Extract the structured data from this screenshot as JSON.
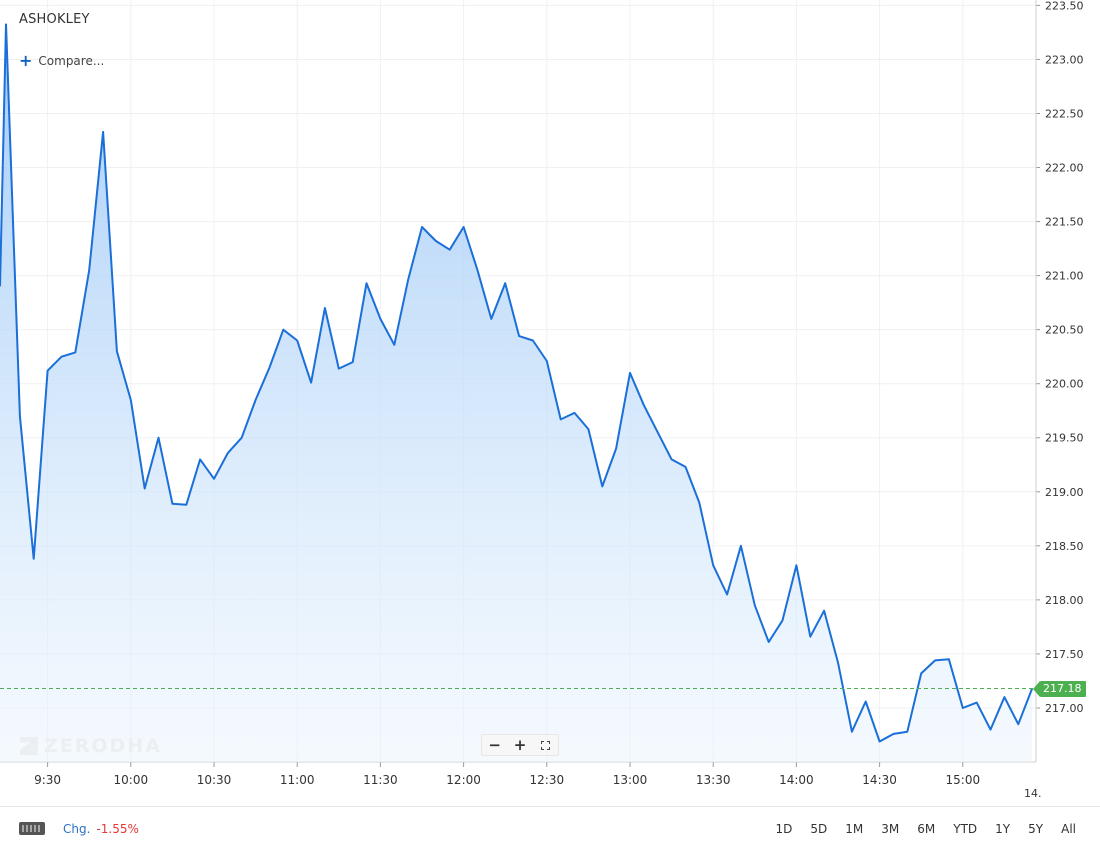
{
  "header": {
    "symbol": "ASHOKLEY",
    "compare_label": "Compare..."
  },
  "watermark": "ZERODHA",
  "zoom": {
    "minus": "−",
    "plus": "+",
    "fullscreen_icon": "fullscreen-icon"
  },
  "last_price": "217.18",
  "footer": {
    "keyboard_icon": "keyboard-icon",
    "chg_label": "Chg.",
    "chg_value": "-1.55%",
    "periods": [
      "1D",
      "5D",
      "1M",
      "3M",
      "6M",
      "YTD",
      "1Y",
      "5Y",
      "All"
    ]
  },
  "colors": {
    "line": "#1a6fd8",
    "fill_top": "#9fc9f7",
    "grid": "#f0f0f0",
    "last_price": "#4caf50"
  },
  "chart_data": {
    "type": "area",
    "title": "",
    "xlabel": "",
    "ylabel": "",
    "x_ticks": [
      "9:30",
      "10:00",
      "10:30",
      "11:00",
      "11:30",
      "12:00",
      "12:30",
      "13:00",
      "13:30",
      "14:00",
      "14:30",
      "15:00"
    ],
    "x_trailing_label": "14.",
    "y_ticks": [
      "217.00",
      "217.50",
      "218.00",
      "218.50",
      "219.00",
      "219.50",
      "220.00",
      "220.50",
      "221.00",
      "221.50",
      "222.00",
      "222.50",
      "223.00",
      "223.50"
    ],
    "ylim": [
      216.5,
      223.55
    ],
    "grid": true,
    "last_value": 217.18,
    "series": [
      {
        "x": [
          "9:15",
          "9:20",
          "9:25",
          "9:30",
          "9:35",
          "9:40",
          "9:45",
          "9:50",
          "9:55",
          "10:00",
          "10:05",
          "10:10",
          "10:15",
          "10:20",
          "10:25",
          "10:30",
          "10:35",
          "10:40",
          "10:45",
          "10:50",
          "10:55",
          "11:00",
          "11:05",
          "11:10",
          "11:15",
          "11:20",
          "11:25",
          "11:30",
          "11:35",
          "11:40",
          "11:45",
          "11:50",
          "11:55",
          "12:00",
          "12:05",
          "12:10",
          "12:15",
          "12:20",
          "12:25",
          "12:30",
          "12:35",
          "12:40",
          "12:45",
          "12:50",
          "12:55",
          "13:00",
          "13:05",
          "13:10",
          "13:15",
          "13:20",
          "13:25",
          "13:30",
          "13:35",
          "13:40",
          "13:45",
          "13:50",
          "13:55",
          "14:00",
          "14:05",
          "14:10",
          "14:15",
          "14:20",
          "14:25",
          "14:30",
          "14:35",
          "14:40",
          "14:45",
          "14:50",
          "14:55",
          "15:00",
          "15:05",
          "15:10",
          "15:15",
          "15:20",
          "15:25"
        ],
        "values": [
          223.33,
          219.7,
          218.38,
          220.12,
          220.25,
          220.29,
          221.05,
          222.33,
          220.3,
          219.85,
          219.03,
          219.5,
          218.89,
          218.88,
          219.3,
          219.12,
          219.36,
          219.5,
          219.85,
          220.15,
          220.5,
          220.4,
          220.01,
          220.7,
          220.14,
          220.2,
          220.93,
          220.6,
          220.36,
          220.96,
          221.45,
          221.32,
          221.24,
          221.45,
          221.05,
          220.6,
          220.93,
          220.44,
          220.4,
          220.21,
          219.67,
          219.73,
          219.58,
          219.05,
          219.4,
          220.1,
          219.8,
          219.55,
          219.3,
          219.23,
          218.9,
          218.32,
          218.05,
          218.5,
          217.95,
          217.61,
          217.81,
          218.32,
          217.66,
          217.9,
          217.42,
          216.78,
          217.06,
          216.69,
          216.76,
          216.78,
          217.32,
          217.44,
          217.45,
          217.0,
          217.05,
          216.8,
          217.1,
          216.85,
          217.18
        ]
      }
    ]
  }
}
